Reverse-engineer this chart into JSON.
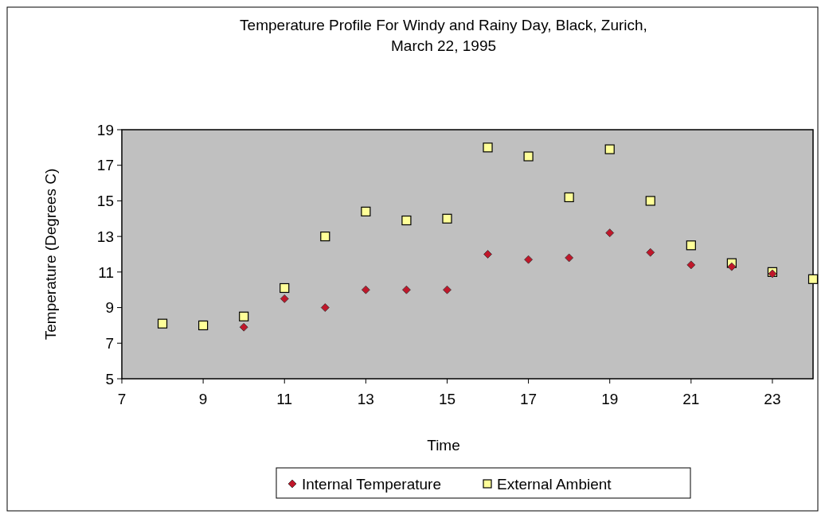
{
  "chart_data": {
    "type": "scatter",
    "title": "Temperature Profile For Windy and Rainy Day, Black, Zurich, March 22, 1995",
    "xlabel": "Time",
    "ylabel": "Temperature (Degrees C)",
    "x": [
      8,
      9,
      10,
      11,
      12,
      13,
      14,
      15,
      16,
      17,
      18,
      19,
      20,
      21,
      22,
      23,
      24
    ],
    "series": [
      {
        "name": "Internal Temperature",
        "color": "#c0172a",
        "marker": "diamond",
        "values": [
          null,
          null,
          7.9,
          9.5,
          9.0,
          10.0,
          10.0,
          10.0,
          12.0,
          11.7,
          11.8,
          13.2,
          12.1,
          11.4,
          11.3,
          10.9,
          null
        ]
      },
      {
        "name": "External Ambient",
        "color": "#ffff99",
        "marker": "square",
        "values": [
          8.1,
          8.0,
          8.5,
          10.1,
          13.0,
          14.4,
          13.9,
          14.0,
          18.0,
          17.5,
          15.2,
          17.9,
          15.0,
          12.5,
          11.5,
          11.0,
          10.6
        ]
      }
    ],
    "xlim": [
      7,
      24
    ],
    "xticks": [
      7,
      9,
      11,
      13,
      15,
      17,
      19,
      21,
      23
    ],
    "ylim": [
      5,
      19
    ],
    "yticks": [
      5,
      7,
      9,
      11,
      13,
      15,
      17,
      19
    ],
    "grid": false,
    "legend": "bottom"
  }
}
